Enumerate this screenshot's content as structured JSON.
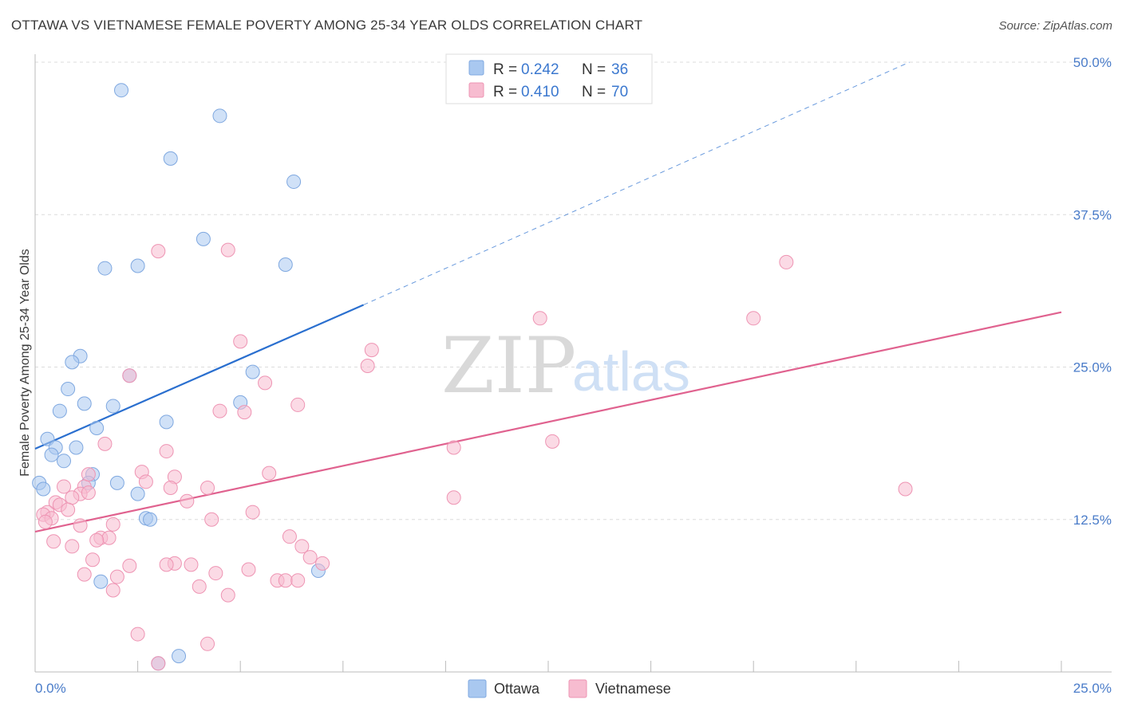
{
  "title": "OTTAWA VS VIETNAMESE FEMALE POVERTY AMONG 25-34 YEAR OLDS CORRELATION CHART",
  "source": "Source: ZipAtlas.com",
  "watermark": {
    "zip": "ZIP",
    "atlas": "atlas"
  },
  "legend": {
    "rows": [
      {
        "r_label": "R =",
        "r_value": "0.242",
        "n_label": "N =",
        "n_value": "36",
        "color": "#a9c8f0",
        "stroke": "#7fa8e0"
      },
      {
        "r_label": "R =",
        "r_value": "0.410",
        "n_label": "N =",
        "n_value": "70",
        "color": "#f7bcd0",
        "stroke": "#ee94b3"
      }
    ]
  },
  "bottom_legend": [
    "Ottawa",
    "Vietnamese"
  ],
  "chart_data": {
    "type": "scatter",
    "title": "OTTAWA VS VIETNAMESE FEMALE POVERTY AMONG 25-34 YEAR OLDS CORRELATION CHART",
    "xlabel": "",
    "ylabel": "Female Poverty Among 25-34 Year Olds",
    "xlim": [
      0,
      25
    ],
    "ylim": [
      0,
      50
    ],
    "x_tick_labels": [
      "0.0%",
      "25.0%"
    ],
    "y_ticks": [
      12.5,
      25.0,
      37.5,
      50.0
    ],
    "y_tick_labels": [
      "12.5%",
      "25.0%",
      "37.5%",
      "50.0%"
    ],
    "grid": true,
    "series": [
      {
        "name": "Ottawa",
        "color": "#a9c8f0",
        "stroke": "#7fa8e0",
        "line_color": "#2a6fcf",
        "trend": {
          "x_start": 0,
          "y_start": 18.3,
          "x_end": 8.0,
          "y_end": 30.1,
          "dash_to_x": 21.3,
          "dash_to_y": 50.0
        },
        "points": [
          [
            2.1,
            47.7
          ],
          [
            4.5,
            45.6
          ],
          [
            3.3,
            42.1
          ],
          [
            6.3,
            40.2
          ],
          [
            4.1,
            35.5
          ],
          [
            2.5,
            33.3
          ],
          [
            6.1,
            33.4
          ],
          [
            1.7,
            33.1
          ],
          [
            1.1,
            25.9
          ],
          [
            0.9,
            25.4
          ],
          [
            5.3,
            24.6
          ],
          [
            2.3,
            24.3
          ],
          [
            0.8,
            23.2
          ],
          [
            1.2,
            22.0
          ],
          [
            1.9,
            21.8
          ],
          [
            5.0,
            22.1
          ],
          [
            0.6,
            21.4
          ],
          [
            3.2,
            20.5
          ],
          [
            1.5,
            20.0
          ],
          [
            0.3,
            19.1
          ],
          [
            1.0,
            18.4
          ],
          [
            0.5,
            18.4
          ],
          [
            0.4,
            17.8
          ],
          [
            0.7,
            17.3
          ],
          [
            1.4,
            16.2
          ],
          [
            1.3,
            15.5
          ],
          [
            2.0,
            15.5
          ],
          [
            0.1,
            15.5
          ],
          [
            0.2,
            15.0
          ],
          [
            2.5,
            14.6
          ],
          [
            2.7,
            12.6
          ],
          [
            2.8,
            12.5
          ],
          [
            6.9,
            8.3
          ],
          [
            1.6,
            7.4
          ],
          [
            3.5,
            1.3
          ],
          [
            3.0,
            0.7
          ]
        ]
      },
      {
        "name": "Vietnamese",
        "color": "#f7bcd0",
        "stroke": "#ee94b3",
        "line_color": "#e0628f",
        "trend": {
          "x_start": 0,
          "y_start": 11.5,
          "x_end": 25.0,
          "y_end": 29.5
        },
        "points": [
          [
            18.3,
            33.6
          ],
          [
            3.0,
            34.5
          ],
          [
            4.7,
            34.6
          ],
          [
            12.3,
            29.0
          ],
          [
            17.5,
            29.0
          ],
          [
            5.0,
            27.1
          ],
          [
            8.2,
            26.4
          ],
          [
            8.1,
            25.1
          ],
          [
            2.3,
            24.3
          ],
          [
            5.6,
            23.7
          ],
          [
            6.4,
            21.9
          ],
          [
            4.5,
            21.4
          ],
          [
            5.1,
            21.3
          ],
          [
            1.7,
            18.7
          ],
          [
            3.2,
            18.1
          ],
          [
            10.2,
            18.4
          ],
          [
            12.6,
            18.9
          ],
          [
            2.6,
            16.4
          ],
          [
            5.7,
            16.3
          ],
          [
            3.4,
            16.0
          ],
          [
            2.7,
            15.6
          ],
          [
            1.2,
            15.2
          ],
          [
            3.3,
            15.1
          ],
          [
            4.2,
            15.1
          ],
          [
            0.7,
            15.2
          ],
          [
            21.2,
            15.0
          ],
          [
            1.1,
            14.6
          ],
          [
            1.3,
            14.7
          ],
          [
            0.9,
            14.3
          ],
          [
            10.2,
            14.3
          ],
          [
            3.7,
            14.0
          ],
          [
            0.5,
            13.9
          ],
          [
            0.6,
            13.7
          ],
          [
            0.8,
            13.3
          ],
          [
            5.3,
            13.1
          ],
          [
            0.3,
            13.1
          ],
          [
            0.2,
            12.9
          ],
          [
            4.3,
            12.5
          ],
          [
            0.4,
            12.6
          ],
          [
            1.9,
            12.1
          ],
          [
            0.25,
            12.3
          ],
          [
            1.1,
            12.0
          ],
          [
            6.2,
            11.1
          ],
          [
            1.6,
            11.0
          ],
          [
            1.8,
            11.0
          ],
          [
            1.5,
            10.8
          ],
          [
            0.45,
            10.7
          ],
          [
            0.9,
            10.3
          ],
          [
            6.5,
            10.3
          ],
          [
            6.7,
            9.4
          ],
          [
            1.4,
            9.2
          ],
          [
            3.4,
            8.9
          ],
          [
            3.2,
            8.8
          ],
          [
            3.8,
            8.8
          ],
          [
            2.3,
            8.7
          ],
          [
            5.2,
            8.4
          ],
          [
            1.2,
            8.0
          ],
          [
            4.4,
            8.1
          ],
          [
            2.0,
            7.8
          ],
          [
            5.9,
            7.5
          ],
          [
            6.1,
            7.5
          ],
          [
            4.0,
            7.0
          ],
          [
            1.9,
            6.7
          ],
          [
            4.7,
            6.3
          ],
          [
            2.5,
            3.1
          ],
          [
            4.2,
            2.3
          ],
          [
            3.0,
            0.7
          ],
          [
            6.4,
            7.5
          ],
          [
            7.0,
            8.9
          ],
          [
            1.3,
            16.2
          ]
        ]
      }
    ]
  }
}
